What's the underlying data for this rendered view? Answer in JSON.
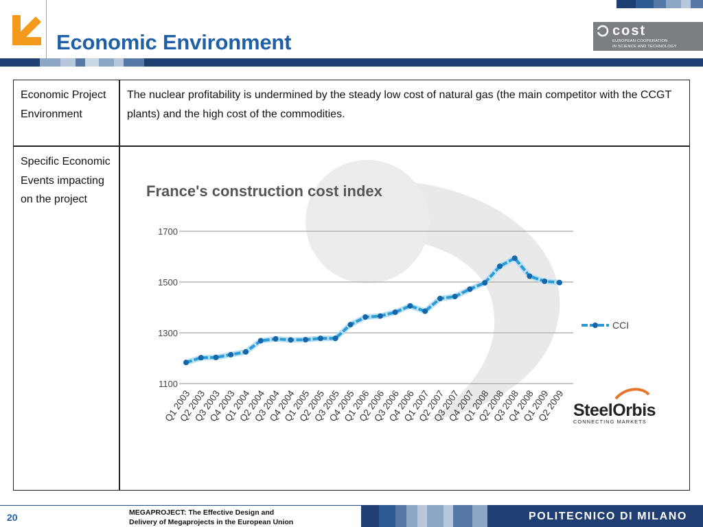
{
  "header": {
    "title": "Economic Environment",
    "cost_logo": {
      "brand": "cost",
      "line1": "EUROPEAN COOPERATION",
      "line2": "IN SCIENCE AND TECHNOLOGY"
    }
  },
  "table": {
    "rows": [
      {
        "label": "Economic Project Environment",
        "content": "The nuclear profitability is undermined by the steady low cost of natural gas (the main competitor with the CCGT plants) and the high cost of the commodities."
      },
      {
        "label": "Specific Economic Events impacting on the project",
        "content": ""
      }
    ]
  },
  "chart_data": {
    "type": "line",
    "title": "France's construction cost index",
    "xlabel": "",
    "ylabel": "",
    "categories": [
      "Q1 2003",
      "Q2 2003",
      "Q3 2003",
      "Q4 2003",
      "Q1 2004",
      "Q2 2004",
      "Q3 2004",
      "Q4 2004",
      "Q1 2005",
      "Q2 2005",
      "Q3 2005",
      "Q4 2005",
      "Q1 2006",
      "Q2 2006",
      "Q3 2006",
      "Q4 2006",
      "Q1 2007",
      "Q2 2007",
      "Q3 2007",
      "Q4 2007",
      "Q1 2008",
      "Q2 2008",
      "Q3 2008",
      "Q4 2008",
      "Q1 2009",
      "Q2 2009"
    ],
    "series": [
      {
        "name": "CCI",
        "values": [
          1183,
          1202,
          1203,
          1214,
          1225,
          1269,
          1276,
          1272,
          1273,
          1278,
          1278,
          1332,
          1362,
          1366,
          1381,
          1406,
          1385,
          1435,
          1443,
          1472,
          1497,
          1562,
          1594,
          1523,
          1503,
          1498
        ],
        "values_intermediate": [
          1183,
          1202,
          1203,
          1214,
          1225,
          1269,
          1276,
          1272,
          1273,
          1278,
          1278,
          1332,
          1362,
          1366,
          1381,
          1406,
          1385,
          1435,
          1443,
          1472,
          1497,
          1562,
          1594,
          1523,
          1503,
          1498
        ]
      }
    ],
    "ylim": [
      1100,
      1700
    ],
    "yticks": [
      1100,
      1300,
      1500,
      1700
    ],
    "grid": true,
    "legend": "right",
    "watermark_brand": "SteelOrbis",
    "watermark_tagline": "CONNECTING MARKETS",
    "colors": {
      "line": "#2b9bd6",
      "marker": "#1565a8",
      "grid": "#a8a8a8"
    }
  },
  "footer": {
    "page": "20",
    "line1": "MEGAPROJECT: The Effective Design and",
    "line2": "Delivery of Megaprojects in the European Union",
    "brand": "POLITECNICO DI MILANO"
  },
  "colors": {
    "accent": "#1f5fa6",
    "logo_orange": "#f39a1c",
    "dark_blue": "#1f3f73"
  }
}
